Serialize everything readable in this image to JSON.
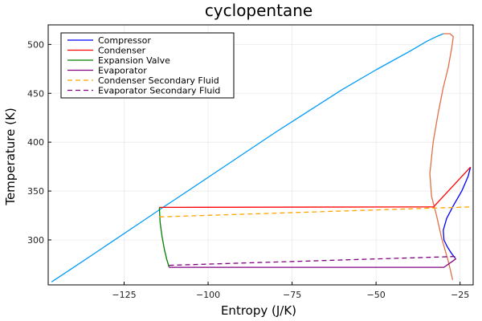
{
  "chart_data": {
    "type": "line",
    "title": "cyclopentane",
    "xlabel": "Entropy (J/K)",
    "ylabel": "Temperature (K)",
    "xlim": [
      -147.6,
      -21.1
    ],
    "ylim": [
      254,
      520
    ],
    "xticks": [
      -125,
      -100,
      -75,
      -50,
      -25
    ],
    "xtick_labels": [
      "−125",
      "−100",
      "−75",
      "−50",
      "−25"
    ],
    "yticks": [
      300,
      350,
      400,
      450,
      500
    ],
    "ytick_labels": [
      "300",
      "350",
      "400",
      "450",
      "500"
    ],
    "grid": true,
    "legend_position": "top-left",
    "legend": [
      {
        "label": "Compressor",
        "color": "#0000ff",
        "dash": "solid"
      },
      {
        "label": "Condenser",
        "color": "#ff0000",
        "dash": "solid"
      },
      {
        "label": "Expansion Valve",
        "color": "#008000",
        "dash": "solid"
      },
      {
        "label": "Evaporator",
        "color": "#800080",
        "dash": "solid"
      },
      {
        "label": "Condenser Secondary Fluid",
        "color": "#ffa500",
        "dash": "dashed"
      },
      {
        "label": "Evaporator Secondary Fluid",
        "color": "#800080",
        "dash": "dashed"
      }
    ],
    "series": [
      {
        "role": "saturation-liquid",
        "color": "#009af9",
        "dash": "solid",
        "x": [
          -146.6,
          -140,
          -130,
          -120,
          -114,
          -110,
          -100,
          -90,
          -80,
          -70,
          -60,
          -50,
          -40,
          -35,
          -32,
          -30
        ],
        "y": [
          257,
          272,
          295,
          318,
          332,
          341,
          364,
          387,
          410,
          432,
          454,
          474,
          493,
          503,
          508,
          511
        ]
      },
      {
        "role": "saturation-vapor",
        "color": "#e26f46",
        "dash": "solid",
        "x": [
          -30,
          -28,
          -27,
          -27.5,
          -28.5,
          -30,
          -31.5,
          -33,
          -34,
          -33.5,
          -32,
          -30.5,
          -28.5,
          -27.2
        ],
        "y": [
          511,
          511,
          508,
          496,
          477,
          456,
          430,
          400,
          368,
          345,
          325,
          302,
          278,
          259
        ]
      },
      {
        "name": "Compressor",
        "color": "#0000ff",
        "dash": "solid",
        "x": [
          -26.5,
          -27.5,
          -28.8,
          -29.8,
          -30.0,
          -29.0,
          -27.0,
          -24.5,
          -22.6,
          -21.9
        ],
        "y": [
          281.7,
          286,
          293,
          300,
          310,
          322,
          335,
          350,
          365,
          374.5
        ]
      },
      {
        "name": "Condenser",
        "color": "#ff0000",
        "dash": "solid",
        "x": [
          -21.9,
          -32.9,
          -114.5
        ],
        "y": [
          374.5,
          333.8,
          333.3
        ]
      },
      {
        "name": "Expansion Valve",
        "color": "#008000",
        "dash": "solid",
        "x": [
          -114.5,
          -114.3,
          -113.7,
          -113.0,
          -112.3,
          -111.6
        ],
        "y": [
          333.3,
          318,
          303,
          290,
          280,
          272
        ]
      },
      {
        "name": "Evaporator",
        "color": "#800080",
        "dash": "solid",
        "x": [
          -111.6,
          -29.8,
          -26.3,
          -26.5
        ],
        "y": [
          272,
          272,
          280.5,
          281.7
        ]
      },
      {
        "name": "Condenser Secondary Fluid",
        "color": "#ffa500",
        "dash": "dashed",
        "x": [
          -114.5,
          -21.9
        ],
        "y": [
          323.5,
          333.8
        ]
      },
      {
        "name": "Evaporator Secondary Fluid",
        "color": "#800080",
        "dash": "dashed",
        "x": [
          -111.6,
          -26.3
        ],
        "y": [
          274,
          283.1
        ]
      }
    ]
  }
}
